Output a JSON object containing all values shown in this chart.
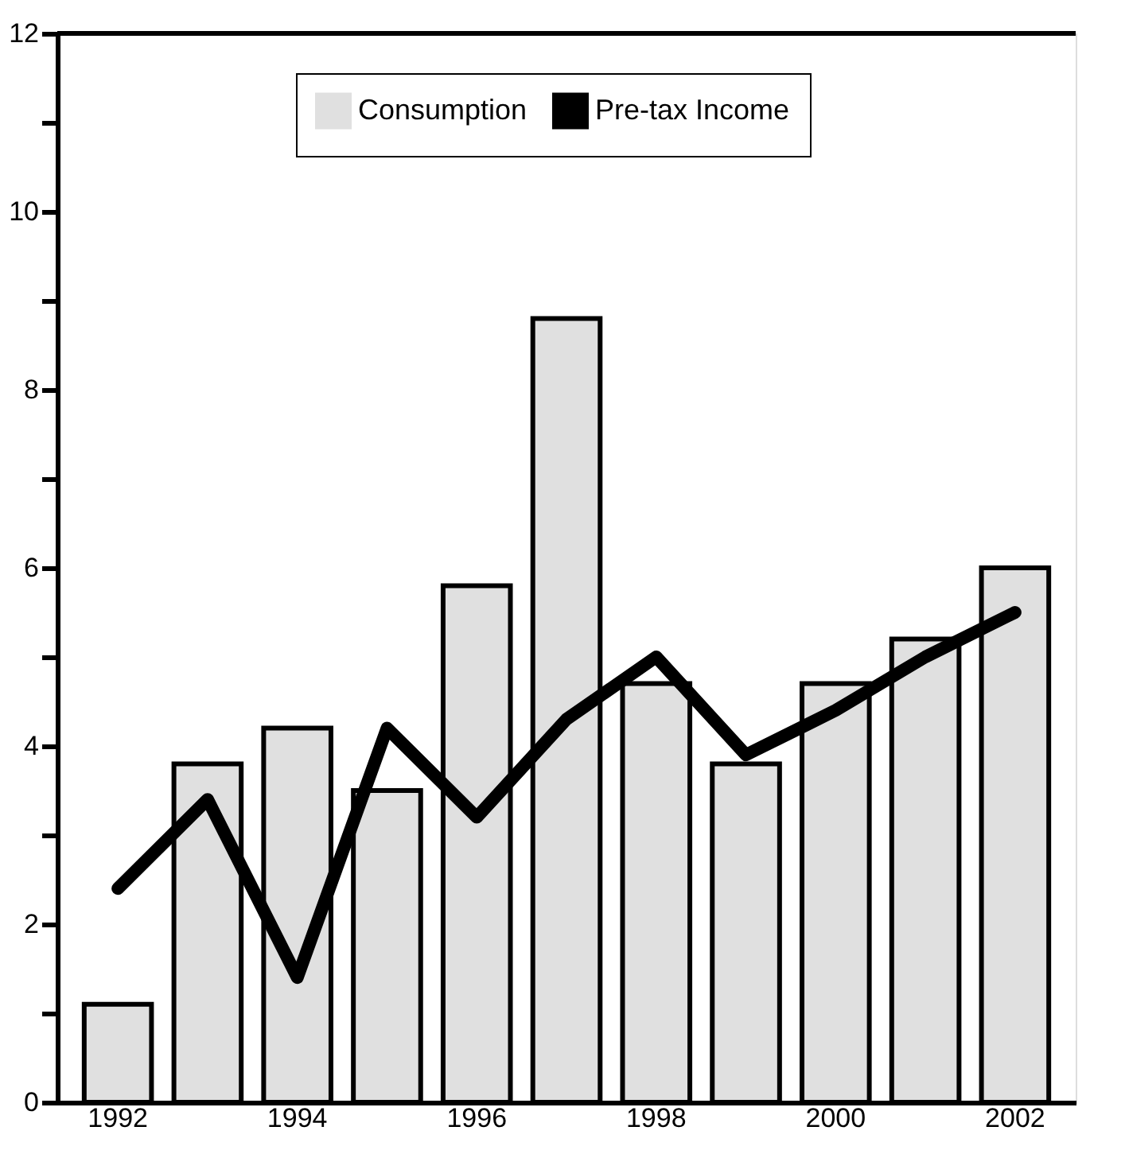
{
  "chart_data": {
    "type": "bar",
    "categories": [
      "1992",
      null,
      "1994",
      null,
      "1996",
      null,
      "1998",
      null,
      "2000",
      null,
      "2002"
    ],
    "series": [
      {
        "name": "Consumption",
        "color": "#e0e0e0",
        "values": [
          1.1,
          3.8,
          4.2,
          3.5,
          5.8,
          8.8,
          4.7,
          3.8,
          4.7,
          5.2,
          6.0
        ]
      },
      {
        "name": "Pre-tax Income",
        "type": "line",
        "color": "#000000",
        "values": [
          2.4,
          3.4,
          1.4,
          4.2,
          3.2,
          4.3,
          5.0,
          3.9,
          4.4,
          5.0,
          5.5
        ]
      }
    ],
    "ylim": [
      0,
      12
    ],
    "yticks": [
      0,
      {
        "value": 1,
        "label": null
      },
      2,
      {
        "value": 3,
        "label": null
      },
      4,
      {
        "value": 5,
        "label": null
      },
      6,
      {
        "value": 7,
        "label": null
      },
      8,
      {
        "value": 9,
        "label": null
      },
      10,
      {
        "value": 11,
        "label": null
      },
      12
    ],
    "legend": "top",
    "grid": false,
    "line_style": "solid",
    "marker": "none"
  }
}
